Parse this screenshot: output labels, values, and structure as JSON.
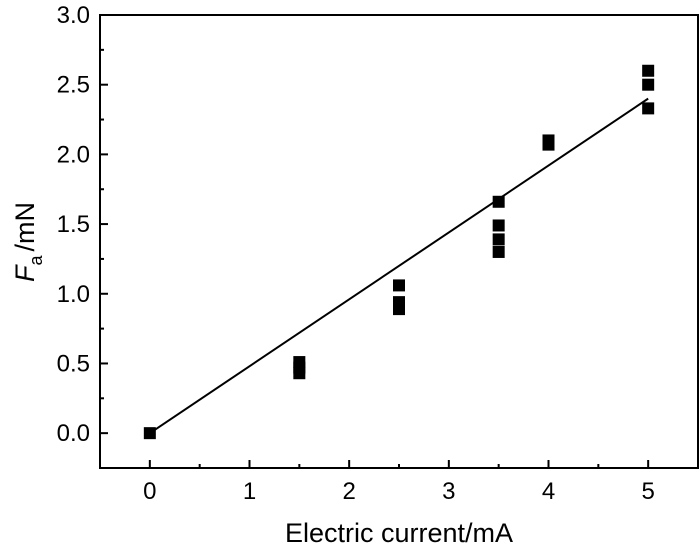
{
  "chart_data": {
    "type": "scatter",
    "xlabel": "Electric current/mA",
    "ylabel": {
      "symbol": "F",
      "subscript": "a",
      "unit": "/mN"
    },
    "xlim": [
      -0.5,
      5.5
    ],
    "ylim": [
      -0.25,
      3.0
    ],
    "xticks": [
      0,
      1,
      2,
      3,
      4,
      5
    ],
    "yticks": [
      0.0,
      0.5,
      1.0,
      1.5,
      2.0,
      2.5,
      3.0
    ],
    "xtick_labels": [
      "0",
      "1",
      "2",
      "3",
      "4",
      "5"
    ],
    "ytick_labels": [
      "0.0",
      "0.5",
      "1.0",
      "1.5",
      "2.0",
      "2.5",
      "3.0"
    ],
    "grid": false,
    "marker_color": "#000000",
    "points": [
      {
        "x": 0,
        "y": 0.0
      },
      {
        "x": 1.5,
        "y": 0.43
      },
      {
        "x": 1.5,
        "y": 0.47
      },
      {
        "x": 1.5,
        "y": 0.51
      },
      {
        "x": 2.5,
        "y": 0.89
      },
      {
        "x": 2.5,
        "y": 0.94
      },
      {
        "x": 2.5,
        "y": 1.06
      },
      {
        "x": 3.5,
        "y": 1.3
      },
      {
        "x": 3.5,
        "y": 1.39
      },
      {
        "x": 3.5,
        "y": 1.49
      },
      {
        "x": 3.5,
        "y": 1.66
      },
      {
        "x": 4,
        "y": 2.07
      },
      {
        "x": 4,
        "y": 2.1
      },
      {
        "x": 5,
        "y": 2.33
      },
      {
        "x": 5,
        "y": 2.5
      },
      {
        "x": 5,
        "y": 2.6
      }
    ],
    "fit_line": {
      "x": [
        0,
        5
      ],
      "y": [
        0.0,
        2.4
      ]
    }
  }
}
